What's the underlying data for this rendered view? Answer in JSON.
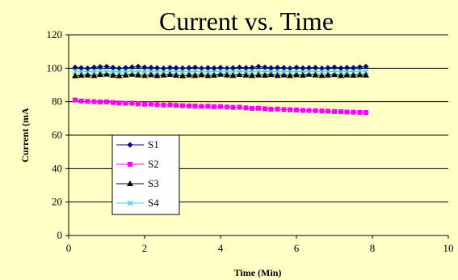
{
  "chart_data": {
    "type": "line",
    "title": "Current vs. Time",
    "xlabel": "Time (Min)",
    "ylabel": "Current (mA",
    "xlim": [
      0,
      10
    ],
    "ylim": [
      0,
      120
    ],
    "xticks": [
      0,
      2,
      4,
      6,
      8,
      10
    ],
    "yticks": [
      0,
      20,
      40,
      60,
      80,
      100,
      120
    ],
    "grid": "horizontal",
    "legend_position": "left-center",
    "x": [
      0.17,
      0.33,
      0.5,
      0.67,
      0.83,
      1.0,
      1.17,
      1.33,
      1.5,
      1.67,
      1.83,
      2.0,
      2.17,
      2.33,
      2.5,
      2.67,
      2.83,
      3.0,
      3.17,
      3.33,
      3.5,
      3.67,
      3.83,
      4.0,
      4.17,
      4.33,
      4.5,
      4.67,
      4.83,
      5.0,
      5.17,
      5.33,
      5.5,
      5.67,
      5.83,
      6.0,
      6.17,
      6.33,
      6.5,
      6.67,
      6.83,
      7.0,
      7.17,
      7.33,
      7.5,
      7.67,
      7.83
    ],
    "series": [
      {
        "name": "S1",
        "color": "#000080",
        "marker": "diamond",
        "values": [
          100.5,
          100.2,
          100.0,
          100.6,
          100.8,
          101.0,
          100.4,
          100.0,
          100.3,
          100.7,
          101.0,
          100.6,
          100.4,
          100.2,
          100.0,
          100.4,
          100.2,
          100.1,
          100.3,
          100.5,
          100.0,
          100.3,
          100.1,
          100.4,
          100.0,
          100.2,
          100.5,
          100.3,
          100.4,
          101.0,
          100.6,
          100.2,
          100.4,
          100.3,
          100.0,
          100.5,
          100.1,
          100.3,
          100.4,
          100.0,
          100.3,
          100.6,
          100.1,
          100.4,
          100.3,
          100.7,
          101.0
        ]
      },
      {
        "name": "S2",
        "color": "#ff00ff",
        "marker": "square",
        "values": [
          81.0,
          80.4,
          80.2,
          80.0,
          79.8,
          79.9,
          79.5,
          79.2,
          79.0,
          79.1,
          78.7,
          78.5,
          78.6,
          78.2,
          78.0,
          78.1,
          77.8,
          77.6,
          77.5,
          77.4,
          77.2,
          77.3,
          77.0,
          77.1,
          76.8,
          76.6,
          76.7,
          76.3,
          76.0,
          76.1,
          75.8,
          75.5,
          75.6,
          75.3,
          75.2,
          75.0,
          74.8,
          74.7,
          74.6,
          74.4,
          74.3,
          74.1,
          74.0,
          73.8,
          73.7,
          73.6,
          73.5
        ]
      },
      {
        "name": "S3",
        "color": "#000000",
        "marker": "triangle",
        "values": [
          95.5,
          95.8,
          96.0,
          95.6,
          96.2,
          96.5,
          95.8,
          95.5,
          95.9,
          96.4,
          96.0,
          95.7,
          96.1,
          95.6,
          95.9,
          96.3,
          95.8,
          95.5,
          96.0,
          95.7,
          96.1,
          95.6,
          95.8,
          96.4,
          96.0,
          95.7,
          96.2,
          95.9,
          95.6,
          96.0,
          95.8,
          96.2,
          95.7,
          96.0,
          95.6,
          96.1,
          95.8,
          96.4,
          96.0,
          95.7,
          95.9,
          96.2,
          95.6,
          96.0,
          95.8,
          96.1,
          95.9
        ]
      },
      {
        "name": "S4",
        "color": "#33ccff",
        "marker": "x",
        "values": [
          98.0,
          98.2,
          97.9,
          98.1,
          98.3,
          98.0,
          97.8,
          98.1,
          98.2,
          97.9,
          98.0,
          98.3,
          98.1,
          97.8,
          98.0,
          98.2,
          97.9,
          98.1,
          98.0,
          97.8,
          98.2,
          98.0,
          97.9,
          98.1,
          98.3,
          98.0,
          97.8,
          98.1,
          98.0,
          98.2,
          97.9,
          98.1,
          98.0,
          97.8,
          98.2,
          98.0,
          98.1,
          97.9,
          98.0,
          98.2,
          98.1,
          97.9,
          98.0,
          98.1,
          97.9,
          98.2,
          98.0
        ]
      }
    ]
  }
}
